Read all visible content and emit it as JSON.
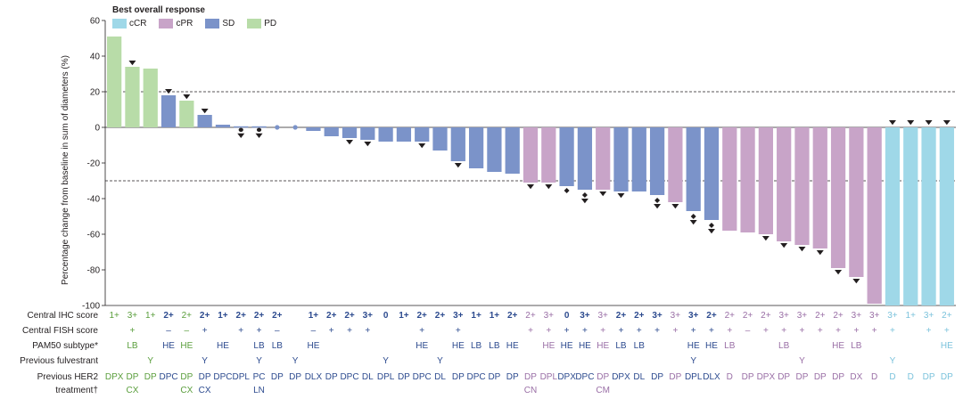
{
  "chart_data": {
    "type": "bar",
    "title": "Best overall response",
    "ylabel": "Percentage change from baseline in sum of diameters (%)",
    "ylim": [
      -100,
      60
    ],
    "yticks": [
      60,
      40,
      20,
      0,
      -20,
      -40,
      -60,
      -80,
      -100
    ],
    "reference_lines": [
      20,
      -30
    ],
    "colors": {
      "cCR": "#9fd8e8",
      "cPR": "#c8a4c8",
      "SD": "#7b93c9",
      "PD": "#b8dca8"
    },
    "legend": [
      {
        "key": "cCR",
        "label": "cCR"
      },
      {
        "key": "cPR",
        "label": "cPR"
      },
      {
        "key": "SD",
        "label": "SD"
      },
      {
        "key": "PD",
        "label": "PD"
      }
    ],
    "row_labels": [
      "Central IHC score",
      "Central FISH score",
      "PAM50 subtype*",
      "Previous fulvestrant",
      "Previous HER2",
      "treatment†"
    ],
    "patients": [
      {
        "v": 51,
        "r": "PD",
        "m": "",
        "ihc": "1+",
        "fish": "",
        "pam": "",
        "ful": "",
        "tx1": "DPX",
        "tx2": ""
      },
      {
        "v": 34,
        "r": "PD",
        "m": "down",
        "ihc": "3+",
        "fish": "+",
        "pam": "LB",
        "ful": "",
        "tx1": "DP",
        "tx2": "CX"
      },
      {
        "v": 33,
        "r": "PD",
        "m": "",
        "ihc": "1+",
        "fish": "",
        "pam": "",
        "ful": "Y",
        "tx1": "DP",
        "tx2": ""
      },
      {
        "v": 18,
        "r": "SD",
        "m": "down",
        "ihc": "2+",
        "fish": "–",
        "pam": "HE",
        "ful": "",
        "tx1": "DPC",
        "tx2": ""
      },
      {
        "v": 15,
        "r": "PD",
        "m": "down",
        "ihc": "2+",
        "fish": "–",
        "pam": "HE",
        "ful": "",
        "tx1": "DP",
        "tx2": "CX"
      },
      {
        "v": 7,
        "r": "SD",
        "m": "down",
        "ihc": "2+",
        "fish": "+",
        "pam": "",
        "ful": "Y",
        "tx1": "DP",
        "tx2": "CX"
      },
      {
        "v": 1.5,
        "r": "SD",
        "m": "",
        "ihc": "1+",
        "fish": "",
        "pam": "HE",
        "ful": "",
        "tx1": "DPC",
        "tx2": ""
      },
      {
        "v": 0.6,
        "r": "SD",
        "m": "dd",
        "ihc": "2+",
        "fish": "+",
        "pam": "",
        "ful": "",
        "tx1": "DPL",
        "tx2": ""
      },
      {
        "v": 0.6,
        "r": "SD",
        "m": "dd",
        "ihc": "2+",
        "fish": "+",
        "pam": "LB",
        "ful": "Y",
        "tx1": "PC",
        "tx2": "LN"
      },
      {
        "v": 0.6,
        "r": "SD",
        "m": "dot",
        "ihc": "2+",
        "fish": "–",
        "pam": "LB",
        "ful": "",
        "tx1": "DP",
        "tx2": ""
      },
      {
        "v": 0.6,
        "r": "SD",
        "m": "dot",
        "ihc": "",
        "fish": "",
        "pam": "",
        "ful": "Y",
        "tx1": "DP",
        "tx2": ""
      },
      {
        "v": -2,
        "r": "SD",
        "m": "",
        "ihc": "1+",
        "fish": "–",
        "pam": "HE",
        "ful": "",
        "tx1": "DLX",
        "tx2": ""
      },
      {
        "v": -5,
        "r": "SD",
        "m": "",
        "ihc": "2+",
        "fish": "+",
        "pam": "",
        "ful": "",
        "tx1": "DP",
        "tx2": ""
      },
      {
        "v": -6,
        "r": "SD",
        "m": "down",
        "ihc": "2+",
        "fish": "+",
        "pam": "",
        "ful": "",
        "tx1": "DPC",
        "tx2": ""
      },
      {
        "v": -7,
        "r": "SD",
        "m": "down",
        "ihc": "3+",
        "fish": "+",
        "pam": "",
        "ful": "",
        "tx1": "DL",
        "tx2": ""
      },
      {
        "v": -8,
        "r": "SD",
        "m": "",
        "ihc": "0",
        "fish": "",
        "pam": "",
        "ful": "Y",
        "tx1": "DPL",
        "tx2": ""
      },
      {
        "v": -8,
        "r": "SD",
        "m": "",
        "ihc": "1+",
        "fish": "",
        "pam": "",
        "ful": "",
        "tx1": "DP",
        "tx2": ""
      },
      {
        "v": -8,
        "r": "SD",
        "m": "down",
        "ihc": "2+",
        "fish": "+",
        "pam": "HE",
        "ful": "",
        "tx1": "DPC",
        "tx2": ""
      },
      {
        "v": -13,
        "r": "SD",
        "m": "",
        "ihc": "2+",
        "fish": "",
        "pam": "",
        "ful": "Y",
        "tx1": "DL",
        "tx2": ""
      },
      {
        "v": -19,
        "r": "SD",
        "m": "down",
        "ihc": "3+",
        "fish": "+",
        "pam": "HE",
        "ful": "",
        "tx1": "DP",
        "tx2": ""
      },
      {
        "v": -23,
        "r": "SD",
        "m": "",
        "ihc": "1+",
        "fish": "",
        "pam": "LB",
        "ful": "",
        "tx1": "DPC",
        "tx2": ""
      },
      {
        "v": -25,
        "r": "SD",
        "m": "",
        "ihc": "1+",
        "fish": "",
        "pam": "LB",
        "ful": "",
        "tx1": "DP",
        "tx2": ""
      },
      {
        "v": -26,
        "r": "SD",
        "m": "",
        "ihc": "2+",
        "fish": "",
        "pam": "HE",
        "ful": "",
        "tx1": "DP",
        "tx2": ""
      },
      {
        "v": -31,
        "r": "cPR",
        "m": "down",
        "ihc": "2+",
        "fish": "+",
        "pam": "",
        "ful": "",
        "tx1": "DP",
        "tx2": "CN"
      },
      {
        "v": -31,
        "r": "cPR",
        "m": "down",
        "ihc": "3+",
        "fish": "+",
        "pam": "HE",
        "ful": "",
        "tx1": "DPL",
        "tx2": ""
      },
      {
        "v": -33,
        "r": "SD",
        "m": "diamond",
        "ihc": "0",
        "fish": "+",
        "pam": "HE",
        "ful": "",
        "tx1": "DPX",
        "tx2": ""
      },
      {
        "v": -35,
        "r": "SD",
        "m": "ddown",
        "ihc": "3+",
        "fish": "+",
        "pam": "HE",
        "ful": "",
        "tx1": "DPC",
        "tx2": ""
      },
      {
        "v": -35,
        "r": "cPR",
        "m": "down",
        "ihc": "3+",
        "fish": "+",
        "pam": "HE",
        "ful": "",
        "tx1": "DP",
        "tx2": "CM"
      },
      {
        "v": -36,
        "r": "SD",
        "m": "down",
        "ihc": "2+",
        "fish": "+",
        "pam": "LB",
        "ful": "",
        "tx1": "DPX",
        "tx2": ""
      },
      {
        "v": -36,
        "r": "SD",
        "m": "",
        "ihc": "2+",
        "fish": "+",
        "pam": "LB",
        "ful": "",
        "tx1": "DL",
        "tx2": ""
      },
      {
        "v": -38,
        "r": "SD",
        "m": "ddown",
        "ihc": "3+",
        "fish": "+",
        "pam": "",
        "ful": "",
        "tx1": "DP",
        "tx2": ""
      },
      {
        "v": -42,
        "r": "cPR",
        "m": "down",
        "ihc": "3+",
        "fish": "+",
        "pam": "",
        "ful": "",
        "tx1": "DP",
        "tx2": ""
      },
      {
        "v": -47,
        "r": "SD",
        "m": "ddown",
        "ihc": "3+",
        "fish": "+",
        "pam": "HE",
        "ful": "Y",
        "tx1": "DPL",
        "tx2": ""
      },
      {
        "v": -52,
        "r": "SD",
        "m": "ddown",
        "ihc": "2+",
        "fish": "+",
        "pam": "HE",
        "ful": "",
        "tx1": "DLX",
        "tx2": ""
      },
      {
        "v": -58,
        "r": "cPR",
        "m": "",
        "ihc": "2+",
        "fish": "+",
        "pam": "LB",
        "ful": "",
        "tx1": "D",
        "tx2": ""
      },
      {
        "v": -59,
        "r": "cPR",
        "m": "",
        "ihc": "2+",
        "fish": "–",
        "pam": "",
        "ful": "",
        "tx1": "DP",
        "tx2": ""
      },
      {
        "v": -60,
        "r": "cPR",
        "m": "down",
        "ihc": "2+",
        "fish": "+",
        "pam": "",
        "ful": "",
        "tx1": "DPX",
        "tx2": ""
      },
      {
        "v": -64,
        "r": "cPR",
        "m": "down",
        "ihc": "3+",
        "fish": "+",
        "pam": "LB",
        "ful": "",
        "tx1": "DP",
        "tx2": ""
      },
      {
        "v": -66,
        "r": "cPR",
        "m": "down",
        "ihc": "3+",
        "fish": "+",
        "pam": "",
        "ful": "Y",
        "tx1": "DP",
        "tx2": ""
      },
      {
        "v": -68,
        "r": "cPR",
        "m": "down",
        "ihc": "2+",
        "fish": "+",
        "pam": "",
        "ful": "",
        "tx1": "DP",
        "tx2": ""
      },
      {
        "v": -79,
        "r": "cPR",
        "m": "down",
        "ihc": "2+",
        "fish": "+",
        "pam": "HE",
        "ful": "",
        "tx1": "DP",
        "tx2": ""
      },
      {
        "v": -84,
        "r": "cPR",
        "m": "down",
        "ihc": "3+",
        "fish": "+",
        "pam": "LB",
        "ful": "",
        "tx1": "DX",
        "tx2": ""
      },
      {
        "v": -99,
        "r": "cPR",
        "m": "",
        "ihc": "3+",
        "fish": "+",
        "pam": "",
        "ful": "",
        "tx1": "D",
        "tx2": ""
      },
      {
        "v": -100,
        "r": "cCR",
        "m": "up",
        "ihc": "3+",
        "fish": "+",
        "pam": "",
        "ful": "Y",
        "tx1": "D",
        "tx2": ""
      },
      {
        "v": -100,
        "r": "cCR",
        "m": "up",
        "ihc": "1+",
        "fish": "",
        "pam": "",
        "ful": "",
        "tx1": "D",
        "tx2": ""
      },
      {
        "v": -100,
        "r": "cCR",
        "m": "up",
        "ihc": "3+",
        "fish": "+",
        "pam": "",
        "ful": "",
        "tx1": "DP",
        "tx2": ""
      },
      {
        "v": -100,
        "r": "cCR",
        "m": "up",
        "ihc": "2+",
        "fish": "+",
        "pam": "HE",
        "ful": "",
        "tx1": "DP",
        "tx2": ""
      }
    ]
  }
}
